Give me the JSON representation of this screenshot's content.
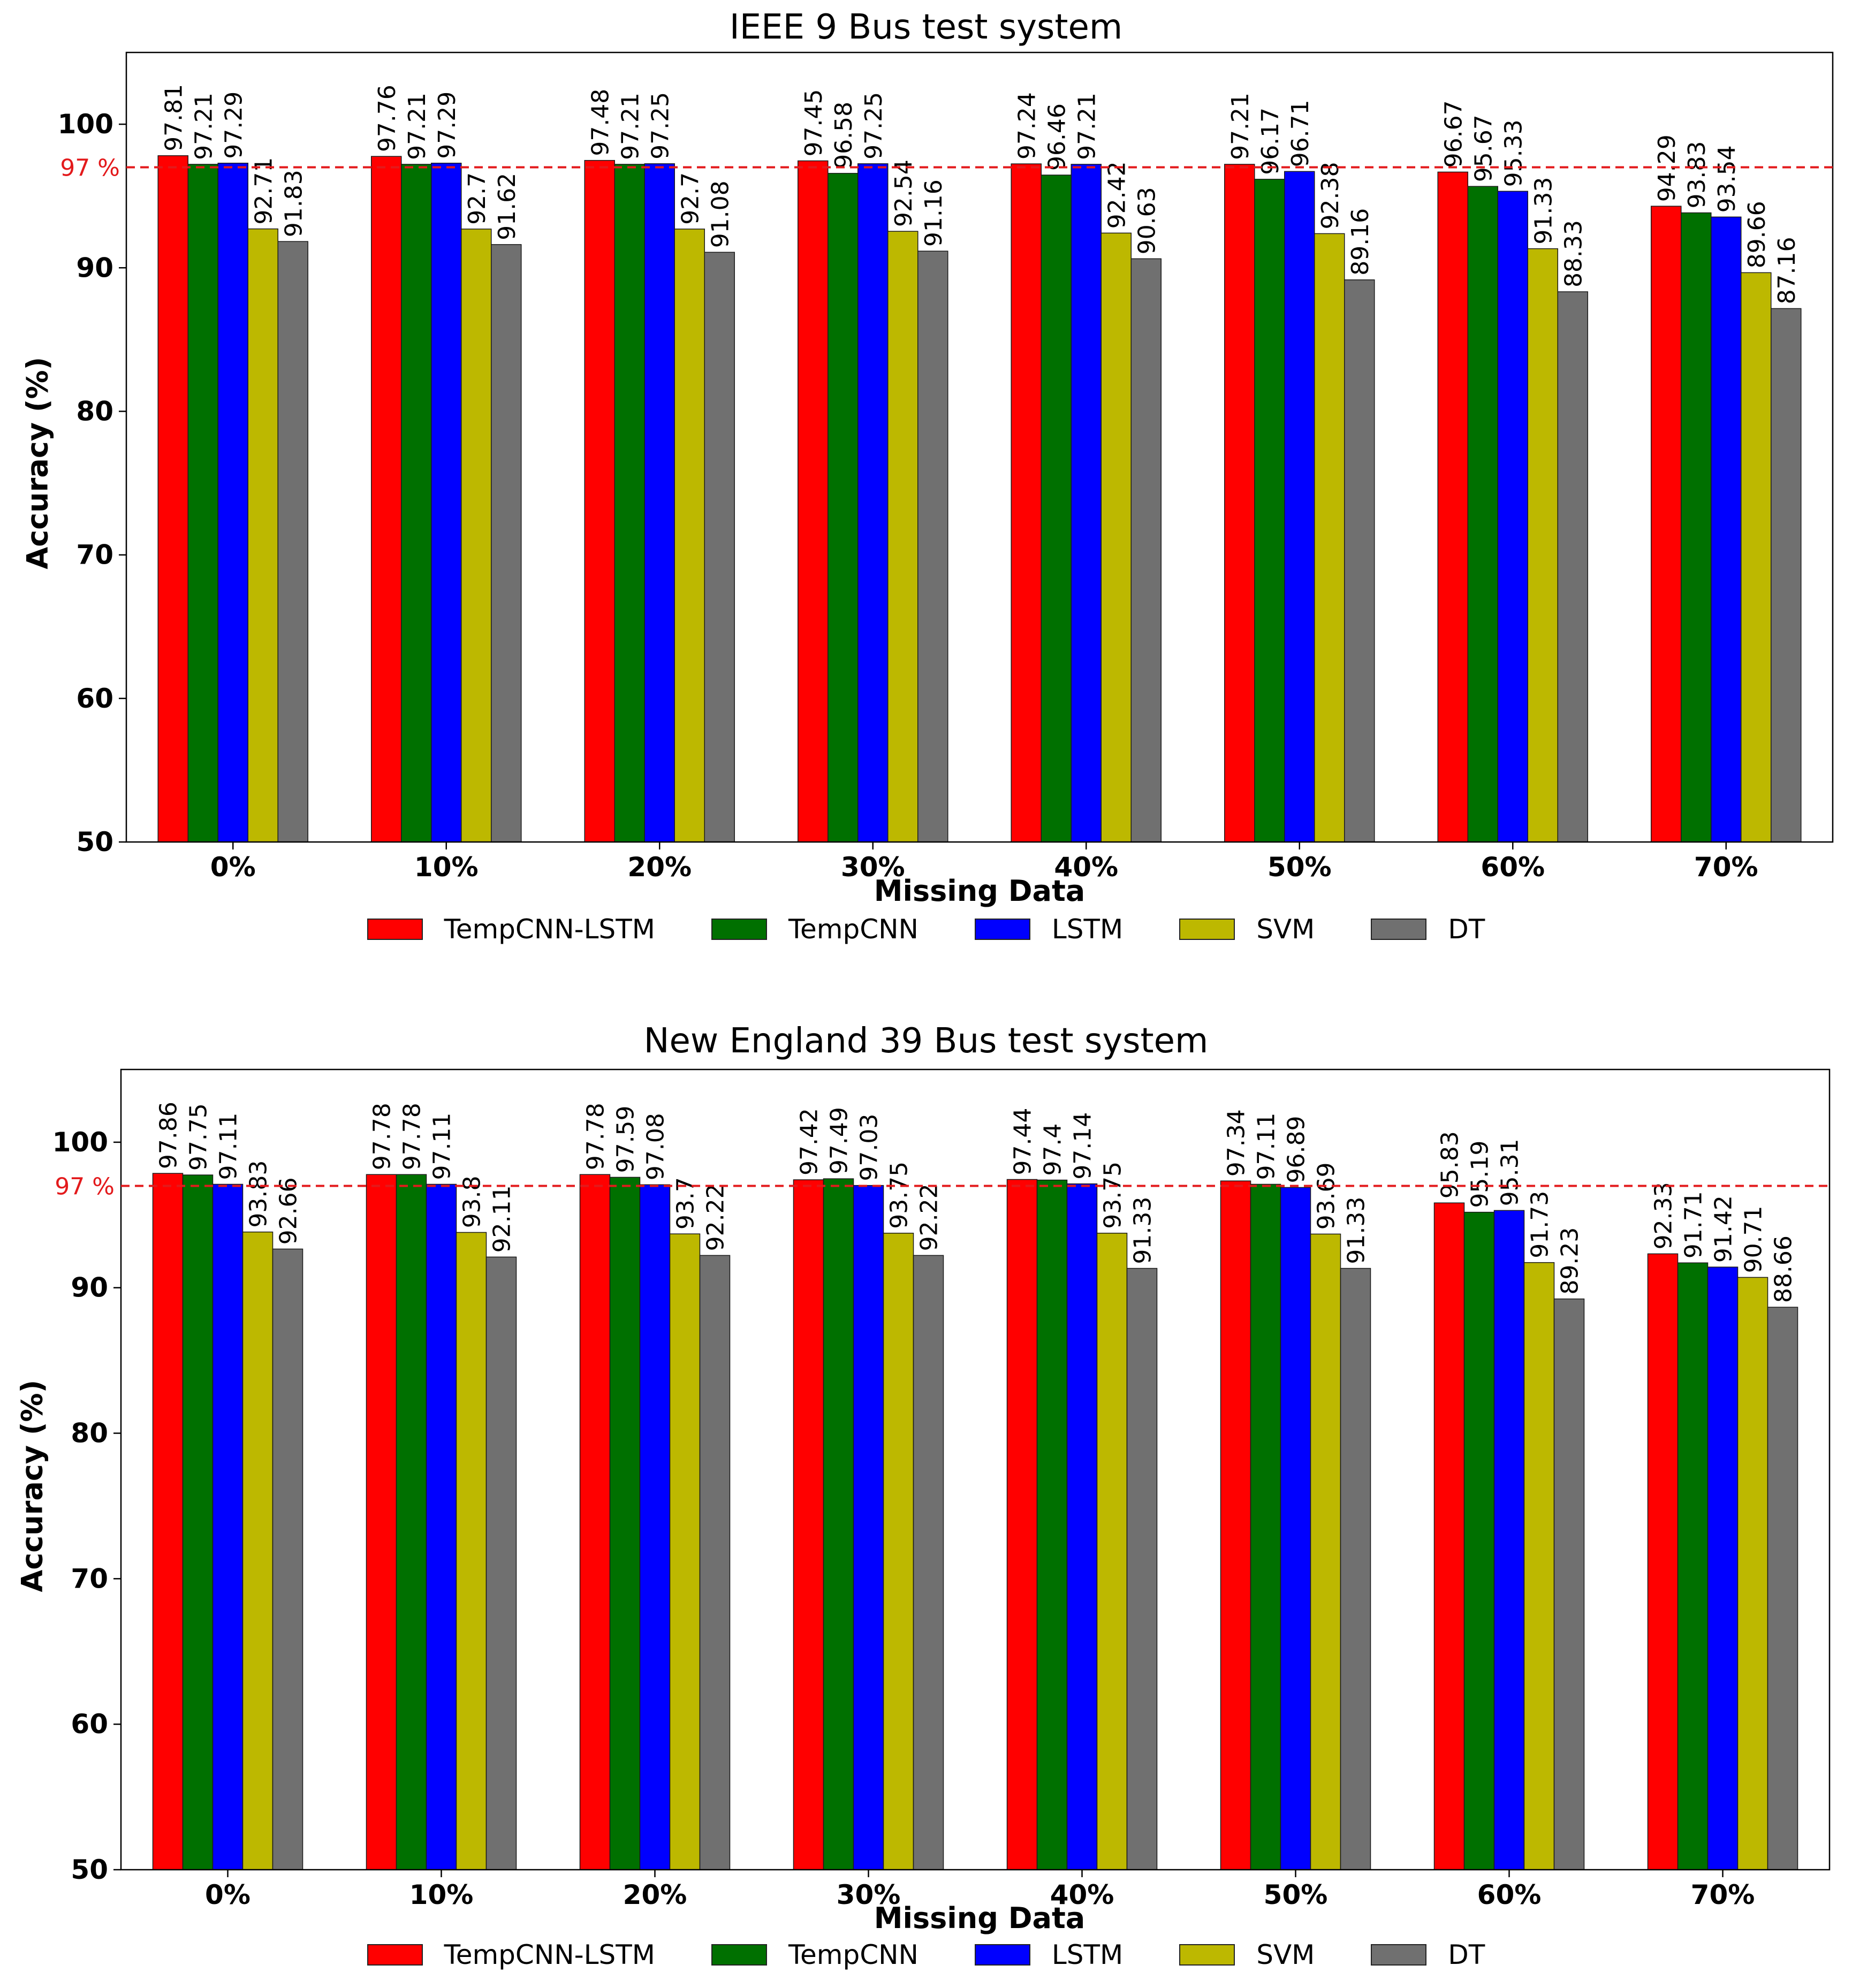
{
  "chart_data": [
    {
      "type": "bar",
      "title": "IEEE 9 Bus test system",
      "xlabel": "Missing Data",
      "ylabel": "Accuracy (%)",
      "ylim": [
        50,
        105
      ],
      "yticks": [
        50,
        60,
        70,
        80,
        90,
        100
      ],
      "categories": [
        "0%",
        "10%",
        "20%",
        "30%",
        "40%",
        "50%",
        "60%",
        "70%"
      ],
      "reference_line": {
        "value": 97,
        "label": "97 %",
        "color": "#e31a1c"
      },
      "legend_position": "bottom",
      "series": [
        {
          "name": "TempCNN-LSTM",
          "color": "#ff0000",
          "values": [
            97.81,
            97.76,
            97.48,
            97.45,
            97.24,
            97.21,
            96.67,
            94.29
          ]
        },
        {
          "name": "TempCNN",
          "color": "#007000",
          "values": [
            97.21,
            97.21,
            97.21,
            96.58,
            96.46,
            96.17,
            95.67,
            93.83
          ]
        },
        {
          "name": "LSTM",
          "color": "#0000ff",
          "values": [
            97.29,
            97.29,
            97.25,
            97.25,
            97.21,
            96.71,
            95.33,
            93.54
          ]
        },
        {
          "name": "SVM",
          "color": "#bdb800",
          "values": [
            92.71,
            92.7,
            92.7,
            92.54,
            92.42,
            92.38,
            91.33,
            89.66
          ]
        },
        {
          "name": "DT",
          "color": "#707070",
          "values": [
            91.83,
            91.62,
            91.08,
            91.16,
            90.63,
            89.16,
            88.33,
            87.16
          ]
        }
      ]
    },
    {
      "type": "bar",
      "title": "New England 39 Bus test system",
      "xlabel": "Missing Data",
      "ylabel": "Accuracy (%)",
      "ylim": [
        50,
        105
      ],
      "yticks": [
        50,
        60,
        70,
        80,
        90,
        100
      ],
      "categories": [
        "0%",
        "10%",
        "20%",
        "30%",
        "40%",
        "50%",
        "60%",
        "70%"
      ],
      "reference_line": {
        "value": 97,
        "label": "97 %",
        "color": "#e31a1c"
      },
      "legend_position": "bottom",
      "series": [
        {
          "name": "TempCNN-LSTM",
          "color": "#ff0000",
          "values": [
            97.86,
            97.78,
            97.78,
            97.42,
            97.44,
            97.34,
            95.83,
            92.33
          ]
        },
        {
          "name": "TempCNN",
          "color": "#007000",
          "values": [
            97.75,
            97.78,
            97.59,
            97.49,
            97.4,
            97.11,
            95.19,
            91.71
          ]
        },
        {
          "name": "LSTM",
          "color": "#0000ff",
          "values": [
            97.11,
            97.11,
            97.08,
            97.03,
            97.14,
            96.89,
            95.31,
            91.42
          ]
        },
        {
          "name": "SVM",
          "color": "#bdb800",
          "values": [
            93.83,
            93.8,
            93.7,
            93.75,
            93.75,
            93.69,
            91.73,
            90.71
          ]
        },
        {
          "name": "DT",
          "color": "#707070",
          "values": [
            92.66,
            92.11,
            92.22,
            92.22,
            91.33,
            91.33,
            89.23,
            88.66
          ]
        }
      ]
    }
  ]
}
